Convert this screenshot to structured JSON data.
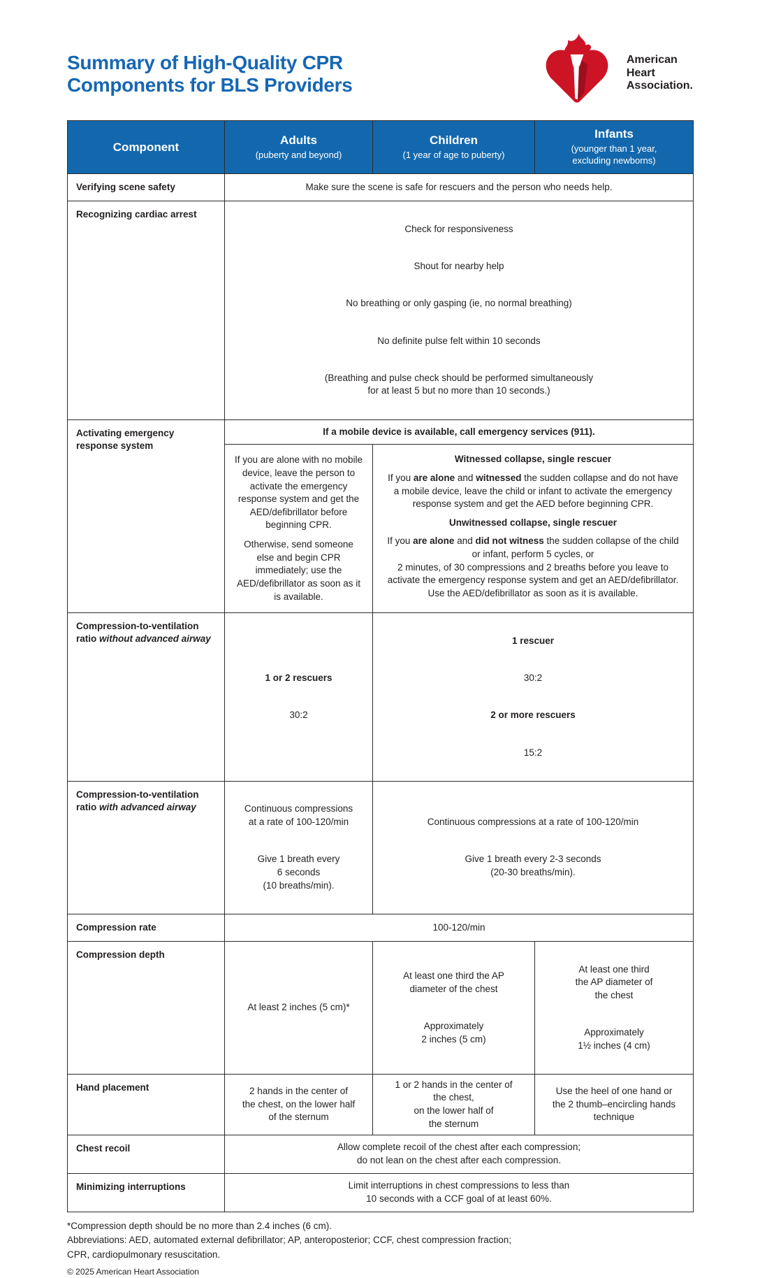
{
  "page": {
    "title": "Summary of High-Quality CPR\nComponents for BLS Providers",
    "logo_text": "American\nHeart\nAssociation."
  },
  "colors": {
    "title_blue": "#1767B3",
    "header_blue": "#1368AD",
    "aha_red": "#CC1425",
    "aha_red_dark": "#9E0E1F",
    "border": "#2b2b2b",
    "text": "#231f20"
  },
  "table": {
    "header": {
      "component": "Component",
      "adults": {
        "title": "Adults",
        "subtitle": "(puberty and beyond)"
      },
      "children": {
        "title": "Children",
        "subtitle": "(1 year of age to puberty)"
      },
      "infants": {
        "title": "Infants",
        "subtitle": "(younger than 1 year,\nexcluding newborns)"
      }
    },
    "rows": {
      "verifying": {
        "label": "Verifying scene safety",
        "all": "Make sure the scene is safe for rescuers and the person who needs help."
      },
      "recognizing": {
        "label": "Recognizing cardiac arrest",
        "lines": [
          "Check for responsiveness",
          "Shout for nearby help",
          "No breathing or only gasping (ie, no normal breathing)",
          "No definite pulse felt within 10 seconds",
          "(Breathing and pulse check should be performed simultaneously\nfor at least 5 but no more than 10 seconds.)"
        ]
      },
      "activating": {
        "label": "Activating emergency response system",
        "mobile": "If a mobile device is available, call emergency services (911).",
        "adults": [
          "If you are alone with no mobile device, leave the person to activate the emergency response system and get the AED/defibrillator before beginning CPR.",
          "Otherwise, send someone else and begin CPR immediately; use the AED/defibrillator as soon as it is available."
        ],
        "witnessed_title": "Witnessed collapse, single rescuer",
        "witnessed": [
          {
            "t": "If you "
          },
          {
            "t": "are alone",
            "b": true
          },
          {
            "t": " and "
          },
          {
            "t": "witnessed",
            "b": true
          },
          {
            "t": " the sudden collapse and do not have a mobile device, leave the child or infant to activate the emergency response system and get the AED before beginning CPR."
          }
        ],
        "unwitnessed_title": "Unwitnessed collapse, single rescuer",
        "unwitnessed": [
          {
            "t": "If you "
          },
          {
            "t": "are alone",
            "b": true
          },
          {
            "t": " and "
          },
          {
            "t": "did not witness",
            "b": true
          },
          {
            "t": " the sudden collapse of the child or infant, perform 5 cycles, or\n2 minutes, of 30 compressions and 2 breaths before you leave to activate the emergency response system and get an AED/defibrillator. Use the AED/defibrillator as soon as it is available."
          }
        ]
      },
      "cv_without": {
        "label": [
          {
            "t": "Compression-to-ventilation ratio ",
            "b": true
          },
          {
            "t": "without advanced airway",
            "i": true
          }
        ],
        "adults": {
          "l1": "1 or 2 rescuers",
          "l2": "30:2"
        },
        "merged": {
          "l1": "1 rescuer",
          "l2": "30:2",
          "l3": "2 or more rescuers",
          "l4": "15:2"
        }
      },
      "cv_with": {
        "label": [
          {
            "t": "Compression-to-ventilation ratio ",
            "b": true
          },
          {
            "t": "with advanced airway",
            "i": true
          }
        ],
        "adults": {
          "p1": "Continuous compressions\nat a rate of 100-120/min",
          "p2": "Give 1 breath every\n6 seconds\n(10 breaths/min)."
        },
        "merged": {
          "p1": "Continuous compressions at a rate of 100-120/min",
          "p2": "Give 1 breath every 2-3 seconds\n(20-30 breaths/min)."
        }
      },
      "rate": {
        "label": "Compression rate",
        "all": "100-120/min"
      },
      "depth": {
        "label": "Compression depth",
        "adults": "At least 2 inches (5 cm)*",
        "children": {
          "p1": "At least one third the AP\ndiameter of the chest",
          "p2": "Approximately\n2 inches (5 cm)"
        },
        "infants": {
          "p1": "At least one third\nthe AP diameter of\nthe chest",
          "p2": "Approximately\n1½ inches (4 cm)"
        }
      },
      "hand": {
        "label": "Hand placement",
        "adults": "2 hands in the center of\nthe chest, on the lower half\nof the sternum",
        "children": "1 or 2 hands in the center of\nthe chest,\non the lower half of\nthe sternum",
        "infants": "Use the heel of one hand or\nthe 2 thumb–encircling hands\ntechnique"
      },
      "recoil": {
        "label": "Chest recoil",
        "all": "Allow complete recoil of the chest after each compression;\ndo not lean on the chest after each compression."
      },
      "minimizing": {
        "label": "Minimizing interruptions",
        "all": "Limit interruptions in chest compressions to less than\n10 seconds with a CCF goal of at least 60%."
      }
    }
  },
  "footnotes": {
    "asterisk": "*Compression depth should be no more than 2.4 inches (6 cm).",
    "abbreviations": "Abbreviations: AED, automated external defibrillator; AP, anteroposterior; CCF, chest compression fraction;\nCPR, cardiopulmonary resuscitation.",
    "copyright": "© 2025 American Heart Association"
  }
}
